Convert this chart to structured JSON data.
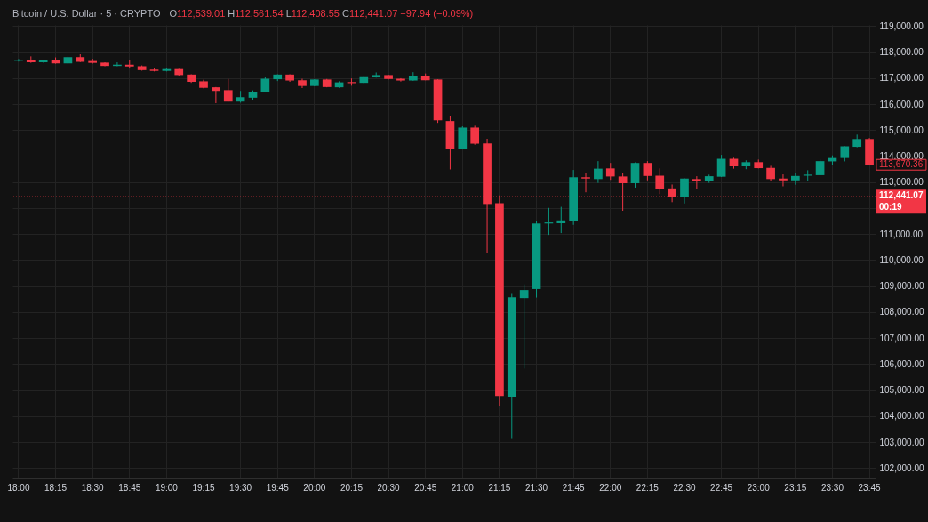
{
  "chart_data": {
    "type": "candlestick",
    "title": "Bitcoin / U.S. Dollar · 5 · CRYPTO",
    "subtitle": "O112,539.01 H112,561.54 L112,408.55 C112,441.07 −97.94 (−0.09%)",
    "categories": [
      "18:00",
      null,
      null,
      "18:15",
      null,
      null,
      "18:30",
      null,
      null,
      "18:45",
      null,
      null,
      "19:00",
      null,
      null,
      "19:15",
      null,
      null,
      "19:30",
      null,
      null,
      "19:45",
      null,
      null,
      "20:00",
      null,
      null,
      "20:15",
      null,
      null,
      "20:30",
      null,
      null,
      "20:45",
      null,
      null,
      "21:00",
      null,
      null,
      "21:15",
      null,
      null,
      "21:30",
      null,
      null,
      "21:45",
      null,
      null,
      "22:00",
      null,
      null,
      "22:15",
      null,
      null,
      "22:30",
      null,
      null,
      "22:45",
      null,
      null,
      "23:00",
      null,
      null,
      "23:15",
      null,
      null,
      "23:30",
      null,
      null,
      "23:45"
    ],
    "ohlc": [
      [
        117670,
        117740,
        117640,
        117710
      ],
      [
        117710,
        117840,
        117590,
        117610
      ],
      [
        117610,
        117700,
        117600,
        117700
      ],
      [
        117690,
        117800,
        117560,
        117570
      ],
      [
        117570,
        117830,
        117560,
        117810
      ],
      [
        117810,
        117920,
        117620,
        117630
      ],
      [
        117660,
        117750,
        117560,
        117590
      ],
      [
        117600,
        117610,
        117460,
        117470
      ],
      [
        117470,
        117610,
        117460,
        117520
      ],
      [
        117520,
        117700,
        117370,
        117450
      ],
      [
        117460,
        117490,
        117290,
        117310
      ],
      [
        117330,
        117370,
        117260,
        117280
      ],
      [
        117280,
        117390,
        117260,
        117350
      ],
      [
        117350,
        117360,
        117100,
        117120
      ],
      [
        117140,
        117150,
        116820,
        116860
      ],
      [
        116880,
        116940,
        116610,
        116630
      ],
      [
        116650,
        116660,
        116040,
        116510
      ],
      [
        116540,
        116970,
        116100,
        116100
      ],
      [
        116100,
        116510,
        116060,
        116270
      ],
      [
        116250,
        116530,
        116170,
        116480
      ],
      [
        116460,
        117030,
        116450,
        116980
      ],
      [
        116960,
        117150,
        116890,
        117140
      ],
      [
        117140,
        117150,
        116860,
        116910
      ],
      [
        116920,
        116980,
        116620,
        116700
      ],
      [
        116700,
        116960,
        116690,
        116950
      ],
      [
        116950,
        116970,
        116650,
        116660
      ],
      [
        116650,
        116880,
        116630,
        116840
      ],
      [
        116850,
        116990,
        116710,
        116810
      ],
      [
        116820,
        117050,
        116800,
        117040
      ],
      [
        117030,
        117220,
        117020,
        117120
      ],
      [
        117120,
        117130,
        116950,
        116970
      ],
      [
        116980,
        117000,
        116870,
        116910
      ],
      [
        116910,
        117230,
        116900,
        117100
      ],
      [
        117090,
        117180,
        116920,
        116920
      ],
      [
        116950,
        116960,
        115280,
        115380
      ],
      [
        115350,
        115550,
        113490,
        114290
      ],
      [
        114290,
        115150,
        114280,
        115100
      ],
      [
        115100,
        115170,
        114440,
        114480
      ],
      [
        114490,
        114670,
        110270,
        112160
      ],
      [
        112190,
        112490,
        104370,
        104770
      ],
      [
        104750,
        108700,
        103120,
        108570
      ],
      [
        108540,
        109070,
        105830,
        108850
      ],
      [
        108890,
        111500,
        108560,
        111410
      ],
      [
        111410,
        112010,
        110970,
        111450
      ],
      [
        111420,
        112050,
        111040,
        111530
      ],
      [
        111510,
        113470,
        111360,
        113190
      ],
      [
        113190,
        113360,
        112610,
        113140
      ],
      [
        113120,
        113810,
        112970,
        113520
      ],
      [
        113530,
        113740,
        113090,
        113220
      ],
      [
        113220,
        113350,
        111900,
        112960
      ],
      [
        112960,
        113760,
        112790,
        113740
      ],
      [
        113740,
        113810,
        113070,
        113240
      ],
      [
        113250,
        113530,
        112540,
        112750
      ],
      [
        112760,
        112910,
        112230,
        112440
      ],
      [
        112440,
        113150,
        112180,
        113140
      ],
      [
        113120,
        113230,
        112720,
        113050
      ],
      [
        113050,
        113290,
        112970,
        113230
      ],
      [
        113210,
        114050,
        113200,
        113900
      ],
      [
        113900,
        113940,
        113520,
        113610
      ],
      [
        113610,
        113840,
        113500,
        113770
      ],
      [
        113770,
        113870,
        113530,
        113540
      ],
      [
        113550,
        113630,
        113050,
        113120
      ],
      [
        113140,
        113300,
        112840,
        113070
      ],
      [
        113070,
        113360,
        112900,
        113240
      ],
      [
        113250,
        113460,
        113050,
        113290
      ],
      [
        113270,
        113880,
        113260,
        113810
      ],
      [
        113800,
        114030,
        113660,
        113930
      ],
      [
        113930,
        114380,
        113800,
        114380
      ],
      [
        114360,
        114830,
        114340,
        114660
      ],
      [
        114660,
        114700,
        113650,
        113670.36
      ]
    ],
    "colors": [
      "#089981",
      "#f23645",
      "#089981",
      "#f23645",
      "#089981",
      "#f23645",
      "#f23645",
      "#f23645",
      "#089981",
      "#f23645",
      "#f23645",
      "#f23645",
      "#089981",
      "#f23645",
      "#f23645",
      "#f23645",
      "#f23645",
      "#f23645",
      "#089981",
      "#089981",
      "#089981",
      "#089981",
      "#f23645",
      "#f23645",
      "#089981",
      "#f23645",
      "#089981",
      "#f23645",
      "#089981",
      "#089981",
      "#f23645",
      "#f23645",
      "#089981",
      "#f23645",
      "#f23645",
      "#f23645",
      "#089981",
      "#f23645",
      "#f23645",
      "#f23645",
      "#089981",
      "#089981",
      "#089981",
      "#089981",
      "#089981",
      "#089981",
      "#f23645",
      "#089981",
      "#f23645",
      "#f23645",
      "#089981",
      "#f23645",
      "#f23645",
      "#f23645",
      "#089981",
      "#f23645",
      "#089981",
      "#089981",
      "#f23645",
      "#089981",
      "#f23645",
      "#f23645",
      "#f23645",
      "#089981",
      "#089981",
      "#089981",
      "#089981",
      "#089981",
      "#089981",
      "#f23645"
    ],
    "ylim": [
      101600,
      119050
    ],
    "yticks": [
      {
        "value": 102000,
        "label": "102,000.00"
      },
      {
        "value": 103000,
        "label": "103,000.00"
      },
      {
        "value": 104000,
        "label": "104,000.00"
      },
      {
        "value": 105000,
        "label": "105,000.00"
      },
      {
        "value": 106000,
        "label": "106,000.00"
      },
      {
        "value": 107000,
        "label": "107,000.00"
      },
      {
        "value": 108000,
        "label": "108,000.00"
      },
      {
        "value": 109000,
        "label": "109,000.00"
      },
      {
        "value": 110000,
        "label": "110,000.00"
      },
      {
        "value": 111000,
        "label": "111,000.00"
      },
      {
        "value": 112000,
        "label": null
      },
      {
        "value": 113000,
        "label": "113,000.00"
      },
      {
        "value": 114000,
        "label": "114,000.00"
      },
      {
        "value": 115000,
        "label": "115,000.00"
      },
      {
        "value": 116000,
        "label": "116,000.00"
      },
      {
        "value": 117000,
        "label": "117,000.00"
      },
      {
        "value": 118000,
        "label": "118,000.00"
      },
      {
        "value": 119000,
        "label": "119,000.00"
      }
    ],
    "grid": true,
    "ref_lines": [
      {
        "axis": "y",
        "value": 112441.07,
        "label": "112,441.07\n00:19",
        "color": "#f23645",
        "line_style": "dotted"
      }
    ],
    "annotations": [
      {
        "text": "113,670.36",
        "x": "23:45",
        "y": 113670.36
      }
    ]
  }
}
